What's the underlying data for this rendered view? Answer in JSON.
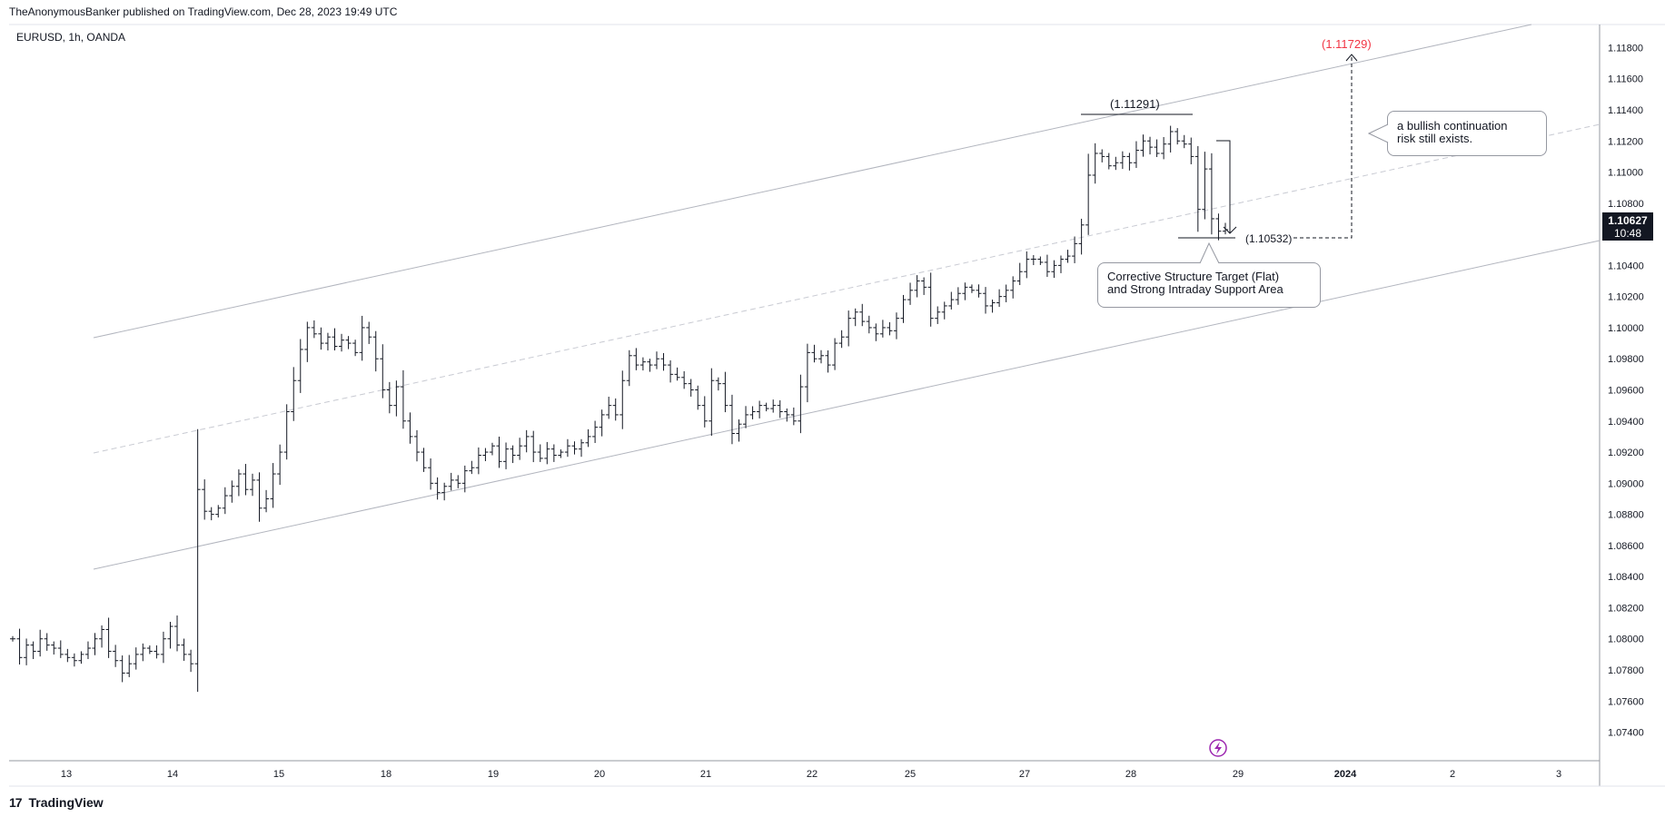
{
  "header": {
    "published": "TheAnonymousBanker published on TradingView.com, Dec 28, 2023 19:49 UTC",
    "symbol": "EURUSD, 1h, OANDA"
  },
  "footer": {
    "brand": "TradingView",
    "logo": "17"
  },
  "annotations": {
    "high_label": "(1.11291)",
    "low_label": "(1.10532)",
    "target_label": "(1.11729)",
    "bubble_support": [
      "Corrective Structure Target (Flat)",
      "and Strong Intraday Support Area"
    ],
    "bubble_bullish": [
      "a bullish continuation",
      "risk still exists."
    ]
  },
  "price_tag": {
    "price": "1.10627",
    "countdown": "10:48"
  },
  "colors": {
    "candle": "#131722",
    "channel": "#b2b5be",
    "grid_text": "#131722",
    "target": "#f23645",
    "lightning": "#9c27b0"
  },
  "icons": {
    "lightning": "lightning-icon",
    "logo": "tradingview-logo-icon"
  },
  "chart_data": {
    "type": "candlestick",
    "title": "EURUSD, 1h, OANDA",
    "ylim": [
      1.0731,
      1.1189
    ],
    "y_ticks": [
      "1.11800",
      "1.11600",
      "1.11400",
      "1.11200",
      "1.11000",
      "1.10800",
      "1.10600",
      "1.10400",
      "1.10200",
      "1.10000",
      "1.09800",
      "1.09600",
      "1.09400",
      "1.09200",
      "1.09000",
      "1.08800",
      "1.08600",
      "1.08400",
      "1.08200",
      "1.08000",
      "1.07800",
      "1.07600",
      "1.07400"
    ],
    "x_ticks": [
      "13",
      "14",
      "15",
      "18",
      "19",
      "20",
      "21",
      "22",
      "25",
      "27",
      "28",
      "29",
      "2024",
      "2",
      "3"
    ],
    "closes": [
      1.08,
      1.0788,
      1.0796,
      1.0792,
      1.08,
      1.0796,
      1.0794,
      1.079,
      1.0788,
      1.0786,
      1.079,
      1.0794,
      1.08,
      1.0806,
      1.0792,
      1.0786,
      1.0778,
      1.0784,
      1.079,
      1.0794,
      1.0792,
      1.079,
      1.08,
      1.0808,
      1.0796,
      1.079,
      1.0784,
      1.0896,
      1.0882,
      1.088,
      1.0884,
      1.0892,
      1.0898,
      1.0906,
      1.0896,
      1.0902,
      1.0884,
      1.089,
      1.0906,
      1.092,
      1.0946,
      1.0966,
      1.0986,
      1.1,
      1.0996,
      1.099,
      1.0994,
      1.0988,
      1.0992,
      1.099,
      1.0984,
      1.1,
      1.0994,
      1.098,
      1.096,
      1.095,
      1.0962,
      1.094,
      1.093,
      1.092,
      1.091,
      1.09,
      1.0894,
      1.0898,
      1.0902,
      1.09,
      1.0908,
      1.091,
      1.0918,
      1.092,
      1.0924,
      1.0914,
      1.0922,
      1.0918,
      1.0924,
      1.093,
      1.092,
      1.0916,
      1.0922,
      1.0918,
      1.092,
      1.0924,
      1.0922,
      1.0926,
      1.093,
      1.0936,
      1.0944,
      1.095,
      1.0944,
      1.0966,
      1.0982,
      1.0976,
      1.0978,
      1.0976,
      1.098,
      1.0976,
      1.097,
      1.0968,
      1.0964,
      1.096,
      1.095,
      1.094,
      1.0966,
      1.0964,
      1.095,
      1.0932,
      1.0938,
      1.0944,
      1.0946,
      1.095,
      1.0948,
      1.095,
      1.0946,
      1.0944,
      1.094,
      1.0962,
      1.0984,
      1.098,
      1.0982,
      1.0976,
      1.099,
      1.0994,
      1.1006,
      1.101,
      1.1004,
      1.1,
      1.0996,
      1.1,
      1.0998,
      1.1006,
      1.1018,
      1.1024,
      1.103,
      1.1026,
      1.1006,
      1.101,
      1.1014,
      1.1018,
      1.1022,
      1.1026,
      1.1024,
      1.1022,
      1.1014,
      1.1016,
      1.102,
      1.1024,
      1.103,
      1.1036,
      1.1044,
      1.1044,
      1.1042,
      1.1036,
      1.104,
      1.1044,
      1.1046,
      1.1054,
      1.1066,
      1.1098,
      1.1112,
      1.111,
      1.1104,
      1.1106,
      1.111,
      1.1106,
      1.1114,
      1.112,
      1.1116,
      1.1112,
      1.1118,
      1.1126,
      1.112,
      1.1118,
      1.111,
      1.1076,
      1.1102,
      1.107,
      1.1062,
      1.1063
    ]
  }
}
